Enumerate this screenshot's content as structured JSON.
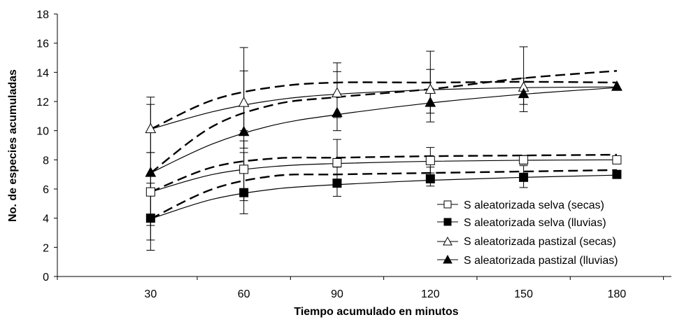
{
  "chart_data": {
    "type": "line",
    "xlabel": "Tiempo acumulado en minutos",
    "ylabel": "No. de especies acumuladas",
    "x": [
      30,
      60,
      90,
      120,
      150,
      180
    ],
    "xlim": [
      0,
      200
    ],
    "ylim": [
      0,
      18
    ],
    "yticks": [
      0,
      2,
      4,
      6,
      8,
      10,
      12,
      14,
      16,
      18
    ],
    "grid": false,
    "legend_position": "bottom-right",
    "series": [
      {
        "name": "S aleatorizada selva (secas)",
        "marker": "square-open",
        "values": [
          5.8,
          7.35,
          7.8,
          7.95,
          8.0,
          8.0
        ],
        "error_low": [
          3.5,
          5.2,
          6.3,
          7.1,
          7.7,
          8.0
        ],
        "error_high": [
          8.5,
          9.3,
          9.4,
          8.85,
          8.3,
          8.0
        ],
        "fit_line": [
          [
            30,
            5.8
          ],
          [
            50,
            7.0
          ],
          [
            70,
            7.55
          ],
          [
            90,
            7.75
          ],
          [
            120,
            7.9
          ],
          [
            150,
            7.97
          ],
          [
            180,
            8.0
          ]
        ],
        "upper_dashed": [
          [
            30,
            5.8
          ],
          [
            50,
            7.5
          ],
          [
            70,
            8.1
          ],
          [
            90,
            8.15
          ],
          [
            120,
            8.25
          ],
          [
            150,
            8.3
          ],
          [
            180,
            8.35
          ]
        ]
      },
      {
        "name": "S aleatorizada selva (lluvias)",
        "marker": "square-filled",
        "values": [
          4.0,
          5.75,
          6.4,
          6.7,
          6.8,
          7.0
        ],
        "error_low": [
          1.8,
          4.3,
          5.5,
          6.2,
          6.1,
          7.0
        ],
        "error_high": [
          6.4,
          8.5,
          7.5,
          7.5,
          7.6,
          7.0
        ],
        "fit_line": [
          [
            30,
            3.95
          ],
          [
            50,
            5.3
          ],
          [
            70,
            6.0
          ],
          [
            90,
            6.3
          ],
          [
            120,
            6.6
          ],
          [
            150,
            6.8
          ],
          [
            180,
            6.95
          ]
        ],
        "upper_dashed": [
          [
            30,
            3.95
          ],
          [
            50,
            6.0
          ],
          [
            70,
            6.9
          ],
          [
            90,
            7.0
          ],
          [
            120,
            7.1
          ],
          [
            150,
            7.2
          ],
          [
            180,
            7.3
          ]
        ]
      },
      {
        "name": "S aleatorizada pastizal (secas)",
        "marker": "triangle-open",
        "values": [
          10.1,
          11.9,
          12.55,
          12.8,
          12.95,
          13.0
        ],
        "error_low": [
          8.5,
          10.0,
          10.9,
          11.2,
          11.8,
          13.0
        ],
        "error_high": [
          11.8,
          14.1,
          14.05,
          14.2,
          13.6,
          13.0
        ],
        "fit_line": [
          [
            30,
            10.1
          ],
          [
            50,
            11.3
          ],
          [
            70,
            12.1
          ],
          [
            90,
            12.5
          ],
          [
            120,
            12.8
          ],
          [
            150,
            12.95
          ],
          [
            180,
            13.0
          ]
        ],
        "upper_dashed": [
          [
            30,
            10.1
          ],
          [
            50,
            12.1
          ],
          [
            70,
            13.0
          ],
          [
            90,
            13.3
          ],
          [
            120,
            13.3
          ],
          [
            150,
            13.35
          ],
          [
            180,
            13.3
          ]
        ]
      },
      {
        "name": "S aleatorizada pastizal (lluvias)",
        "marker": "triangle-filled",
        "values": [
          7.1,
          9.9,
          11.2,
          11.9,
          12.5,
          13.0
        ],
        "error_low": [
          2.5,
          8.8,
          10.0,
          10.6,
          11.3,
          13.0
        ],
        "error_high": [
          12.3,
          15.7,
          14.65,
          15.45,
          15.75,
          13.0
        ],
        "fit_line": [
          [
            30,
            7.1
          ],
          [
            50,
            9.1
          ],
          [
            70,
            10.4
          ],
          [
            90,
            11.1
          ],
          [
            120,
            11.9
          ],
          [
            150,
            12.5
          ],
          [
            180,
            12.95
          ]
        ],
        "upper_dashed": [
          [
            30,
            7.1
          ],
          [
            50,
            10.3
          ],
          [
            70,
            11.8
          ],
          [
            90,
            12.3
          ],
          [
            120,
            12.85
          ],
          [
            150,
            13.6
          ],
          [
            180,
            14.1
          ]
        ]
      }
    ]
  }
}
